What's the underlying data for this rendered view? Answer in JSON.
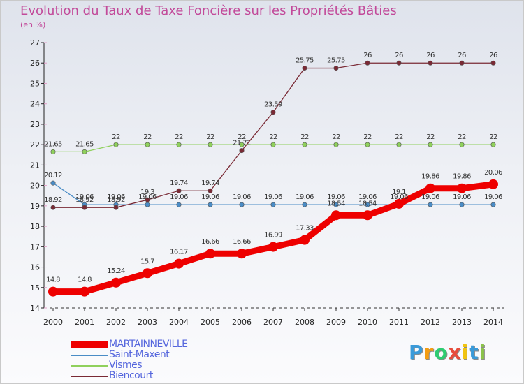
{
  "chart_data": {
    "type": "line",
    "title": "Evolution du Taux de Taxe Foncière sur les Propriétés Bâties",
    "subtitle": "(en %)",
    "xlabel": "",
    "ylabel": "",
    "x": [
      2000,
      2001,
      2002,
      2003,
      2004,
      2005,
      2006,
      2007,
      2008,
      2009,
      2010,
      2011,
      2012,
      2013,
      2014
    ],
    "ylim": [
      14,
      27
    ],
    "yticks": [
      14,
      15,
      16,
      17,
      18,
      19,
      20,
      21,
      22,
      23,
      24,
      25,
      26,
      27
    ],
    "legend_position": "bottom-left",
    "series": [
      {
        "name": "Saint-Maxent",
        "color": "#4a8cc6",
        "values": [
          20.12,
          19.06,
          19.06,
          19.06,
          19.06,
          19.06,
          19.06,
          19.06,
          19.06,
          19.06,
          19.06,
          19.06,
          19.06,
          19.06,
          19.06
        ],
        "labels": [
          "20.12",
          "19.06",
          "19.06",
          "19.06",
          "19.06",
          "19.06",
          "19.06",
          "19.06",
          "19.06",
          "19.06",
          "19.06",
          "19.06",
          "19.06",
          "19.06",
          "19.06"
        ]
      },
      {
        "name": "Vismes",
        "color": "#8fd05c",
        "values": [
          21.65,
          21.65,
          22,
          22,
          22,
          22,
          22,
          22,
          22,
          22,
          22,
          22,
          22,
          22,
          22
        ],
        "labels": [
          "21.65",
          "21.65",
          "22",
          "22",
          "22",
          "22",
          "22",
          "22",
          "22",
          "22",
          "22",
          "22",
          "22",
          "22",
          "22"
        ]
      },
      {
        "name": "Biencourt",
        "color": "#7a2a35",
        "values": [
          18.92,
          18.92,
          18.92,
          19.3,
          19.74,
          19.74,
          21.71,
          23.59,
          25.75,
          25.75,
          26,
          26,
          26,
          26,
          26
        ],
        "labels": [
          "18.92",
          "18.92",
          "18.92",
          "19.3",
          "19.74",
          "19.74",
          "21.71",
          "23.59",
          "25.75",
          "25.75",
          "26",
          "26",
          "26",
          "26",
          "26"
        ]
      },
      {
        "name": "MARTAINNEVILLE",
        "color": "#ee0000",
        "values": [
          14.8,
          14.8,
          15.24,
          15.7,
          16.17,
          16.66,
          16.66,
          16.99,
          17.33,
          18.54,
          18.54,
          19.1,
          19.86,
          19.86,
          20.06
        ],
        "labels": [
          "14.8",
          "14.8",
          "15.24",
          "15.7",
          "16.17",
          "16.66",
          "16.66",
          "16.99",
          "17.33",
          "18.54",
          "18.54",
          "19.1",
          "19.86",
          "19.86",
          "20.06"
        ]
      }
    ]
  },
  "legend": {
    "items": [
      {
        "name": "MARTAINNEVILLE",
        "color": "#ee0000"
      },
      {
        "name": "Saint-Maxent",
        "color": "#4a8cc6"
      },
      {
        "name": "Vismes",
        "color": "#8fd05c"
      },
      {
        "name": "Biencourt",
        "color": "#7a2a35"
      }
    ]
  },
  "logo": {
    "letters": [
      "P",
      "r",
      "o",
      "x",
      "i",
      "t",
      "i"
    ],
    "colors": [
      "#3a9ad9",
      "#f39c12",
      "#2ecc71",
      "#e74c3c",
      "#f1c40f",
      "#3a9ad9",
      "#8bc34a"
    ]
  }
}
